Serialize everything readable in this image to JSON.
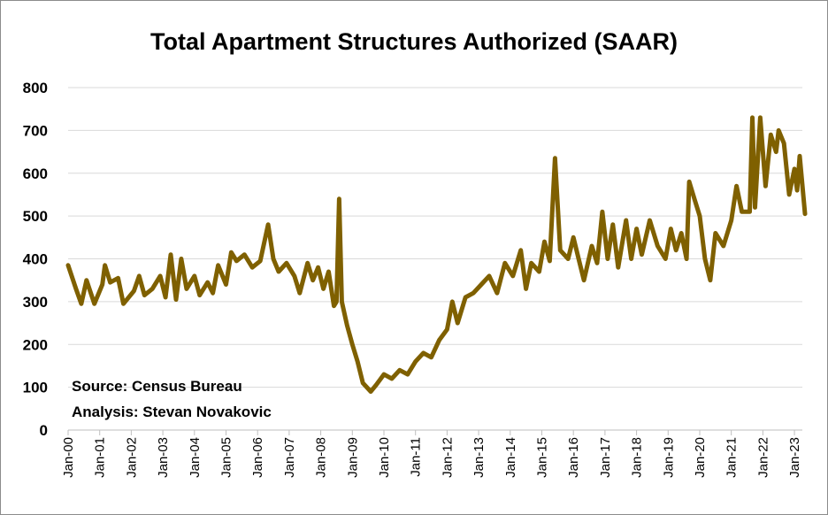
{
  "chart_data": {
    "type": "line",
    "title": "Total Apartment Structures Authorized (SAAR)",
    "xlabel": "",
    "ylabel": "",
    "ylim": [
      0,
      800
    ],
    "y_ticks": [
      "0",
      "100",
      "200",
      "300",
      "400",
      "500",
      "600",
      "700",
      "800"
    ],
    "y_tick_values": [
      0,
      100,
      200,
      300,
      400,
      500,
      600,
      700,
      800
    ],
    "x_tick_labels": [
      "Jan-00",
      "Jan-01",
      "Jan-02",
      "Jan-03",
      "Jan-04",
      "Jan-05",
      "Jan-06",
      "Jan-07",
      "Jan-08",
      "Jan-09",
      "Jan-10",
      "Jan-11",
      "Jan-12",
      "Jan-13",
      "Jan-14",
      "Jan-15",
      "Jan-16",
      "Jan-17",
      "Jan-18",
      "Jan-19",
      "Jan-20",
      "Jan-21",
      "Jan-22",
      "Jan-23"
    ],
    "grid": true,
    "series_color": "#7f6000",
    "annotations": [
      "Source: Census Bureau",
      "Analysis: Stevan Novakovic"
    ],
    "series": [
      {
        "points": [
          [
            "2000-01",
            385
          ],
          [
            "2000-04",
            330
          ],
          [
            "2000-06",
            295
          ],
          [
            "2000-08",
            350
          ],
          [
            "2000-11",
            295
          ],
          [
            "2001-02",
            340
          ],
          [
            "2001-03",
            385
          ],
          [
            "2001-05",
            345
          ],
          [
            "2001-08",
            355
          ],
          [
            "2001-10",
            295
          ],
          [
            "2002-02",
            325
          ],
          [
            "2002-04",
            360
          ],
          [
            "2002-06",
            315
          ],
          [
            "2002-09",
            330
          ],
          [
            "2002-12",
            360
          ],
          [
            "2003-02",
            310
          ],
          [
            "2003-04",
            410
          ],
          [
            "2003-06",
            305
          ],
          [
            "2003-08",
            400
          ],
          [
            "2003-10",
            330
          ],
          [
            "2004-01",
            360
          ],
          [
            "2004-03",
            315
          ],
          [
            "2004-06",
            345
          ],
          [
            "2004-08",
            320
          ],
          [
            "2004-10",
            385
          ],
          [
            "2005-01",
            340
          ],
          [
            "2005-03",
            415
          ],
          [
            "2005-05",
            395
          ],
          [
            "2005-08",
            410
          ],
          [
            "2005-11",
            380
          ],
          [
            "2006-02",
            395
          ],
          [
            "2006-05",
            480
          ],
          [
            "2006-07",
            400
          ],
          [
            "2006-09",
            370
          ],
          [
            "2006-12",
            390
          ],
          [
            "2007-03",
            360
          ],
          [
            "2007-05",
            320
          ],
          [
            "2007-08",
            390
          ],
          [
            "2007-10",
            350
          ],
          [
            "2007-12",
            380
          ],
          [
            "2008-02",
            330
          ],
          [
            "2008-04",
            370
          ],
          [
            "2008-06",
            290
          ],
          [
            "2008-07",
            300
          ],
          [
            "2008-08",
            540
          ],
          [
            "2008-09",
            300
          ],
          [
            "2008-11",
            245
          ],
          [
            "2009-01",
            200
          ],
          [
            "2009-03",
            160
          ],
          [
            "2009-05",
            110
          ],
          [
            "2009-08",
            90
          ],
          [
            "2009-10",
            105
          ],
          [
            "2010-01",
            130
          ],
          [
            "2010-04",
            120
          ],
          [
            "2010-07",
            140
          ],
          [
            "2010-10",
            130
          ],
          [
            "2011-01",
            160
          ],
          [
            "2011-04",
            180
          ],
          [
            "2011-07",
            170
          ],
          [
            "2011-10",
            210
          ],
          [
            "2012-01",
            235
          ],
          [
            "2012-03",
            300
          ],
          [
            "2012-05",
            250
          ],
          [
            "2012-08",
            310
          ],
          [
            "2012-11",
            320
          ],
          [
            "2013-02",
            340
          ],
          [
            "2013-05",
            360
          ],
          [
            "2013-08",
            320
          ],
          [
            "2013-11",
            390
          ],
          [
            "2014-02",
            360
          ],
          [
            "2014-05",
            420
          ],
          [
            "2014-07",
            330
          ],
          [
            "2014-09",
            390
          ],
          [
            "2014-12",
            370
          ],
          [
            "2015-02",
            440
          ],
          [
            "2015-04",
            395
          ],
          [
            "2015-06",
            635
          ],
          [
            "2015-08",
            420
          ],
          [
            "2015-11",
            400
          ],
          [
            "2016-01",
            450
          ],
          [
            "2016-03",
            400
          ],
          [
            "2016-05",
            350
          ],
          [
            "2016-08",
            430
          ],
          [
            "2016-10",
            390
          ],
          [
            "2016-12",
            510
          ],
          [
            "2017-02",
            400
          ],
          [
            "2017-04",
            480
          ],
          [
            "2017-06",
            380
          ],
          [
            "2017-09",
            490
          ],
          [
            "2017-11",
            400
          ],
          [
            "2018-01",
            470
          ],
          [
            "2018-03",
            410
          ],
          [
            "2018-06",
            490
          ],
          [
            "2018-09",
            430
          ],
          [
            "2018-12",
            400
          ],
          [
            "2019-02",
            470
          ],
          [
            "2019-04",
            420
          ],
          [
            "2019-06",
            460
          ],
          [
            "2019-08",
            400
          ],
          [
            "2019-09",
            580
          ],
          [
            "2019-11",
            540
          ],
          [
            "2020-01",
            500
          ],
          [
            "2020-03",
            400
          ],
          [
            "2020-05",
            350
          ],
          [
            "2020-07",
            460
          ],
          [
            "2020-10",
            430
          ],
          [
            "2021-01",
            490
          ],
          [
            "2021-03",
            570
          ],
          [
            "2021-05",
            510
          ],
          [
            "2021-08",
            510
          ],
          [
            "2021-09",
            730
          ],
          [
            "2021-10",
            520
          ],
          [
            "2021-12",
            730
          ],
          [
            "2022-02",
            570
          ],
          [
            "2022-04",
            690
          ],
          [
            "2022-06",
            650
          ],
          [
            "2022-07",
            700
          ],
          [
            "2022-09",
            670
          ],
          [
            "2022-11",
            550
          ],
          [
            "2023-01",
            610
          ],
          [
            "2023-02",
            560
          ],
          [
            "2023-03",
            640
          ],
          [
            "2023-05",
            505
          ]
        ]
      }
    ]
  }
}
